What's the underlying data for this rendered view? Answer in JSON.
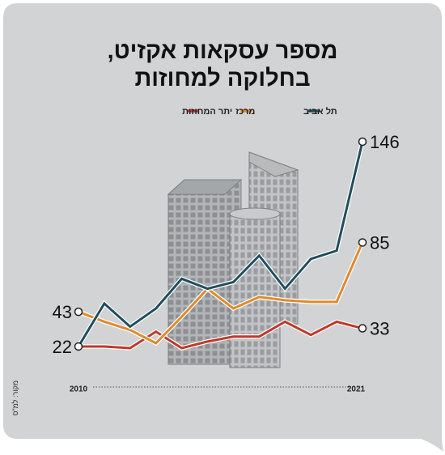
{
  "chart_data": {
    "type": "line",
    "title": [
      "מספר עסקאות אקזיט,",
      "בחלוקה למחוזות"
    ],
    "source": "מקור: למ\"ס",
    "x": [
      2010,
      2011,
      2012,
      2013,
      2014,
      2015,
      2016,
      2017,
      2018,
      2019,
      2020,
      2021
    ],
    "xlim": [
      2010,
      2021
    ],
    "xticks": [
      2010,
      2021
    ],
    "series": [
      {
        "name": "תל אביב",
        "color": "#1f4e5f",
        "values": [
          22,
          48,
          34,
          45,
          63,
          57,
          61,
          77,
          57,
          75,
          80,
          146
        ]
      },
      {
        "name": "מרכז",
        "color": "#e08a2c",
        "values": [
          43,
          37,
          32,
          24,
          40,
          57,
          45,
          52,
          50,
          49,
          49,
          85
        ]
      },
      {
        "name": "יתר המחוזות",
        "color": "#c0392b",
        "values": [
          22,
          22,
          21,
          31,
          21,
          25,
          28,
          28,
          37,
          29,
          37,
          33
        ]
      }
    ]
  }
}
